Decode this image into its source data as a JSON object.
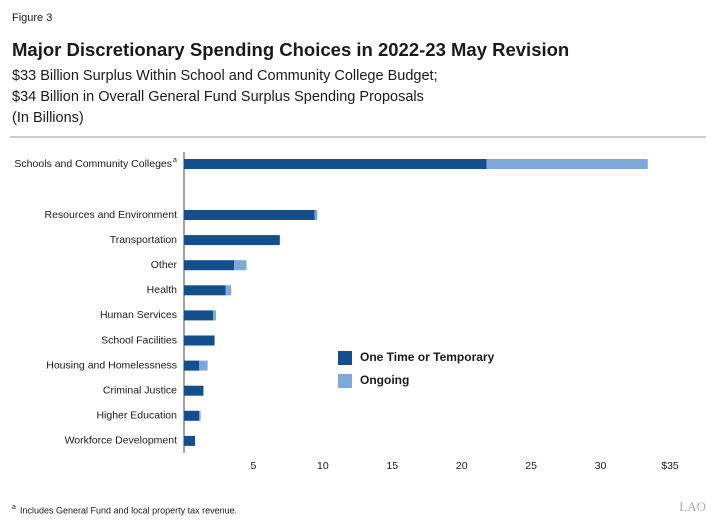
{
  "chart_data": {
    "type": "stacked-bar-horizontal",
    "figure_label": "Figure 3",
    "title": "Major Discretionary Spending Choices in 2022-23 May Revision",
    "subtitle": [
      "$33 Billion Surplus Within School and Community College Budget;",
      "$34 Billion in Overall General Fund Surplus Spending Proposals",
      "(In Billions)"
    ],
    "categories": [
      "Schools and Community Colleges",
      "Resources and Environment",
      "Transportation",
      "Other",
      "Health",
      "Human Services",
      "School Facilities",
      "Housing and Homelessness",
      "Criminal Justice",
      "Higher Education",
      "Workforce Development"
    ],
    "series": [
      {
        "name": "One Time or Temporary",
        "color": "#124f8c",
        "values": [
          21.8,
          9.4,
          6.9,
          3.6,
          3.0,
          2.1,
          2.2,
          1.1,
          1.4,
          1.1,
          0.8
        ]
      },
      {
        "name": "Ongoing",
        "color": "#7ea7da",
        "values": [
          11.6,
          0.2,
          0,
          0.9,
          0.4,
          0.2,
          0,
          0.6,
          0,
          0.1,
          0
        ]
      }
    ],
    "xlim": [
      0,
      35
    ],
    "xticks": [
      5,
      10,
      15,
      20,
      25,
      30,
      {
        "value": 35,
        "label": "$35"
      }
    ],
    "legend": "center",
    "footnote": {
      "marker": "a",
      "text": "Includes General Fund and local property tax revenue."
    },
    "source_logo": "LAO"
  }
}
